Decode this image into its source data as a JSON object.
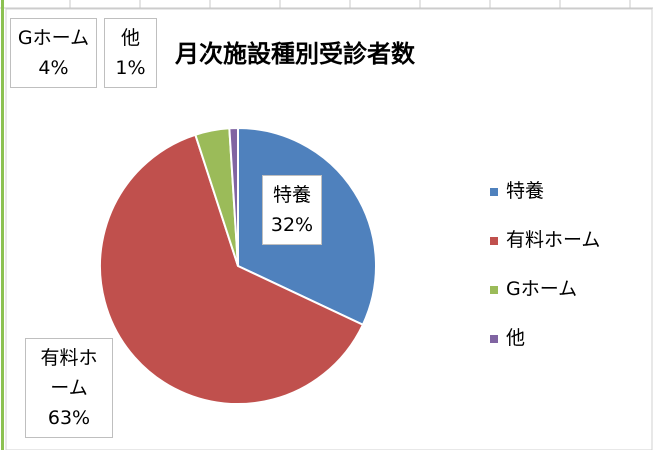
{
  "chart_data": {
    "type": "pie",
    "title": "月次施設種別受診者数",
    "categories": [
      "特養",
      "有料ホーム",
      "Gホーム",
      "他"
    ],
    "values": [
      32,
      63,
      4,
      1
    ],
    "value_labels": [
      "32%",
      "63%",
      "4%",
      "1%"
    ],
    "colors": [
      "#4f81bd",
      "#c0504d",
      "#9bbb59",
      "#8064a2"
    ],
    "legend": "right"
  }
}
